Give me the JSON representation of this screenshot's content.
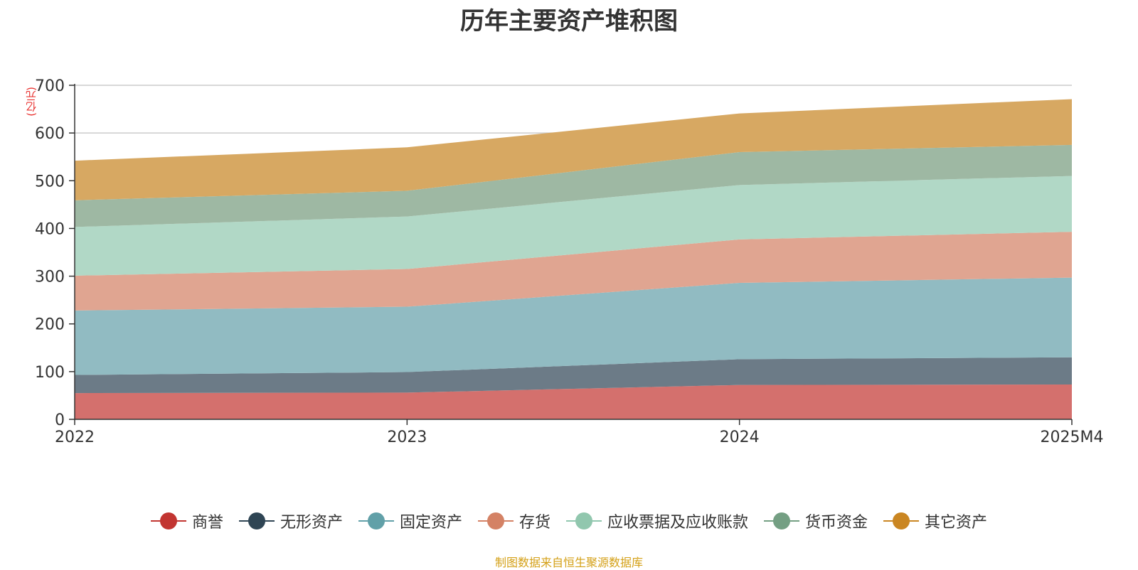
{
  "title": "历年主要资产堆积图",
  "unit_label": "(亿元)",
  "source_note": "制图数据来自恒生聚源数据库",
  "chart_data": {
    "type": "area",
    "stacked": true,
    "title": "历年主要资产堆积图",
    "ylabel": "(亿元)",
    "categories": [
      "2022",
      "2023",
      "2024",
      "2025M4"
    ],
    "ylim": [
      0,
      700
    ],
    "yticks": [
      0,
      100,
      200,
      300,
      400,
      500,
      600,
      700
    ],
    "grid": true,
    "legend_position": "bottom",
    "series": [
      {
        "name": "商誉",
        "color": "#c23531",
        "fill": "#d4706d",
        "values": [
          55,
          56,
          72,
          73
        ]
      },
      {
        "name": "无形资产",
        "color": "#2f4554",
        "fill": "#6c7b87",
        "values": [
          38,
          43,
          54,
          57
        ]
      },
      {
        "name": "固定资产",
        "color": "#61a0a8",
        "fill": "#91bbc2",
        "values": [
          135,
          137,
          160,
          167
        ]
      },
      {
        "name": "存货",
        "color": "#d48265",
        "fill": "#e0a591",
        "values": [
          73,
          79,
          91,
          96
        ]
      },
      {
        "name": "应收票据及应收账款",
        "color": "#91c7ae",
        "fill": "#b1d8c6",
        "values": [
          102,
          110,
          114,
          117
        ]
      },
      {
        "name": "货币资金",
        "color": "#749f83",
        "fill": "#9eb8a3",
        "values": [
          56,
          54,
          69,
          65
        ]
      },
      {
        "name": "其它资产",
        "color": "#ca8622",
        "fill": "#d7a862",
        "values": [
          83,
          91,
          81,
          96
        ]
      }
    ]
  }
}
